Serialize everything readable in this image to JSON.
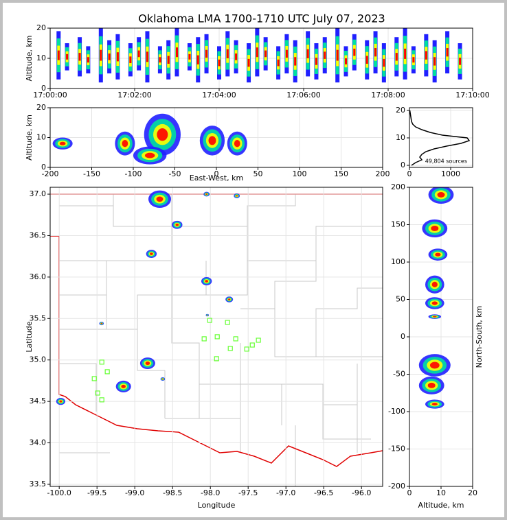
{
  "chart_data": [
    {
      "type": "range",
      "title": "Oklahoma LMA 1700-1710 UTC July 07, 2023",
      "ylabel": "Altitude, km",
      "xlim": [
        0,
        10
      ],
      "ylim": [
        0,
        20
      ],
      "yticks": [
        0,
        10,
        20
      ],
      "xticks": [
        {
          "value": 0,
          "label": "17:00:00"
        },
        {
          "value": 2,
          "label": "17:02:00"
        },
        {
          "value": 4,
          "label": "17:04:00"
        },
        {
          "value": 6,
          "label": "17:06:00"
        },
        {
          "value": 8,
          "label": "17:08:00"
        },
        {
          "value": 10,
          "label": "17:10:00"
        }
      ],
      "x": [
        0.2,
        0.4,
        0.7,
        0.9,
        1.2,
        1.4,
        1.6,
        1.9,
        2.1,
        2.3,
        2.6,
        2.8,
        3.0,
        3.3,
        3.5,
        3.7,
        4.0,
        4.2,
        4.4,
        4.7,
        4.9,
        5.1,
        5.4,
        5.6,
        5.8,
        6.1,
        6.3,
        6.5,
        6.8,
        7.0,
        7.2,
        7.5,
        7.7,
        7.9,
        8.2,
        8.4,
        8.6,
        8.9,
        9.1,
        9.4,
        9.7
      ],
      "low": [
        3,
        6,
        4,
        5,
        2,
        5,
        3,
        4,
        6,
        2,
        5,
        3,
        4,
        6,
        2,
        5,
        3,
        4,
        5,
        2,
        4,
        6,
        3,
        5,
        2,
        4,
        3,
        5,
        2,
        4,
        6,
        3,
        5,
        2,
        4,
        3,
        5,
        4,
        2,
        5,
        3
      ],
      "high": [
        19,
        15,
        17,
        14,
        20,
        16,
        18,
        15,
        17,
        19,
        14,
        16,
        20,
        15,
        17,
        18,
        14,
        19,
        16,
        15,
        20,
        17,
        14,
        18,
        16,
        19,
        15,
        17,
        20,
        14,
        18,
        16,
        19,
        15,
        17,
        20,
        14,
        18,
        16,
        19,
        15
      ],
      "colors": [
        "#2020ff",
        "#00e0a0",
        "#ffff00",
        "#ff0000"
      ],
      "grid": true
    },
    {
      "type": "density",
      "xlabel": "East-West, km",
      "ylabel": "Altitude, km",
      "xlim": [
        -200,
        200
      ],
      "ylim": [
        0,
        20
      ],
      "xticks": [
        -200,
        -150,
        -100,
        -50,
        0,
        50,
        100,
        150,
        200
      ],
      "yticks": [
        0,
        10,
        20
      ],
      "x": [
        -65,
        -110,
        -185,
        -5,
        25,
        -80
      ],
      "y": [
        11,
        8,
        8,
        9,
        8,
        4
      ],
      "rx": [
        22,
        12,
        12,
        15,
        12,
        20
      ],
      "ry": [
        7,
        4,
        2,
        5,
        4,
        3
      ],
      "colors": [
        "#2020ff",
        "#00e0a0",
        "#ffff00",
        "#ff0000"
      ],
      "grid": true
    },
    {
      "type": "line",
      "annotation": "49,804 sources",
      "xlim": [
        0,
        1533
      ],
      "ylim": [
        -0.75,
        21
      ],
      "xticks": [
        0,
        1000
      ],
      "yticks": [
        0,
        10,
        20
      ],
      "x": [
        50,
        150,
        300,
        250,
        300,
        400,
        600,
        900,
        1250,
        1450,
        1400,
        800,
        500,
        300,
        150,
        80,
        50,
        40,
        30,
        20,
        10
      ],
      "y": [
        0,
        1,
        2,
        3,
        4,
        5,
        6,
        7,
        8,
        9,
        10,
        11,
        12,
        13,
        14,
        15,
        16,
        17,
        18,
        19,
        20
      ],
      "color": "#000000",
      "grid": true
    },
    {
      "type": "map",
      "xlabel": "Longitude",
      "ylabel": "Latitude",
      "xlim": [
        -100.12,
        -95.72
      ],
      "ylim": [
        33.475,
        37.083
      ],
      "xticks": [
        {
          "value": -100,
          "label": "-100.0"
        },
        {
          "value": -99.5,
          "label": "-99.5"
        },
        {
          "value": -99,
          "label": "-99.0"
        },
        {
          "value": -98.5,
          "label": "-98.5"
        },
        {
          "value": -98,
          "label": "-98.0"
        },
        {
          "value": -97.5,
          "label": "-97.5"
        },
        {
          "value": -97,
          "label": "-97.0"
        },
        {
          "value": -96.5,
          "label": "-96.5"
        },
        {
          "value": -96,
          "label": "-96.0"
        }
      ],
      "yticks": [
        {
          "value": 33.5,
          "label": "33.5"
        },
        {
          "value": 34,
          "label": "34.0"
        },
        {
          "value": 34.5,
          "label": "34.5"
        },
        {
          "value": 35,
          "label": "35.0"
        },
        {
          "value": 35.5,
          "label": "35.5"
        },
        {
          "value": 36,
          "label": "36.0"
        },
        {
          "value": 36.5,
          "label": "36.5"
        },
        {
          "value": 37,
          "label": "37.0"
        }
      ],
      "x": [
        -98.67,
        -98.44,
        -98.78,
        -98.05,
        -97.75,
        -97.65,
        -98.05,
        -98.83,
        -99.15,
        -99.98,
        -99.44,
        -98.63,
        -98.04
      ],
      "y": [
        36.94,
        36.63,
        36.28,
        35.95,
        35.73,
        36.98,
        37.0,
        34.96,
        34.68,
        34.5,
        35.44,
        34.77,
        35.54
      ],
      "size": [
        0.15,
        0.07,
        0.07,
        0.07,
        0.05,
        0.04,
        0.04,
        0.1,
        0.1,
        0.06,
        0.03,
        0.03,
        0.02
      ],
      "colors": [
        "#2020ff",
        "#00e0a0",
        "#ffff00",
        "#ff0000"
      ],
      "stations": {
        "color": "#66ff33",
        "x": [
          -99.436,
          -99.364,
          -99.536,
          -99.491,
          -99.436,
          -98.009,
          -97.773,
          -97.909,
          -98.082,
          -97.664,
          -97.364,
          -97.445,
          -97.736,
          -97.518,
          -97.918
        ],
        "y": [
          34.974,
          34.858,
          34.775,
          34.601,
          34.519,
          35.478,
          35.453,
          35.28,
          35.255,
          35.255,
          35.238,
          35.18,
          35.139,
          35.131,
          35.015
        ]
      },
      "grid": true
    },
    {
      "type": "density",
      "xlabel": "Altitude, km",
      "ylabel": "North-South, km",
      "xlim": [
        0,
        20
      ],
      "ylim": [
        -200,
        200
      ],
      "xticks": [
        0,
        10,
        20
      ],
      "yticks": [
        -200,
        -150,
        -100,
        -50,
        0,
        50,
        100,
        150,
        200
      ],
      "x": [
        10,
        8,
        9,
        8,
        8,
        8,
        8,
        7,
        8
      ],
      "y": [
        190,
        145,
        110,
        70,
        45,
        27,
        -38,
        -65,
        -90
      ],
      "rx": [
        4,
        4,
        3,
        3,
        3,
        2,
        5,
        4,
        3
      ],
      "ry": [
        12,
        12,
        8,
        12,
        8,
        3,
        15,
        12,
        6
      ],
      "colors": [
        "#2020ff",
        "#00e0a0",
        "#ffff00",
        "#ff0000"
      ],
      "grid": true
    }
  ]
}
